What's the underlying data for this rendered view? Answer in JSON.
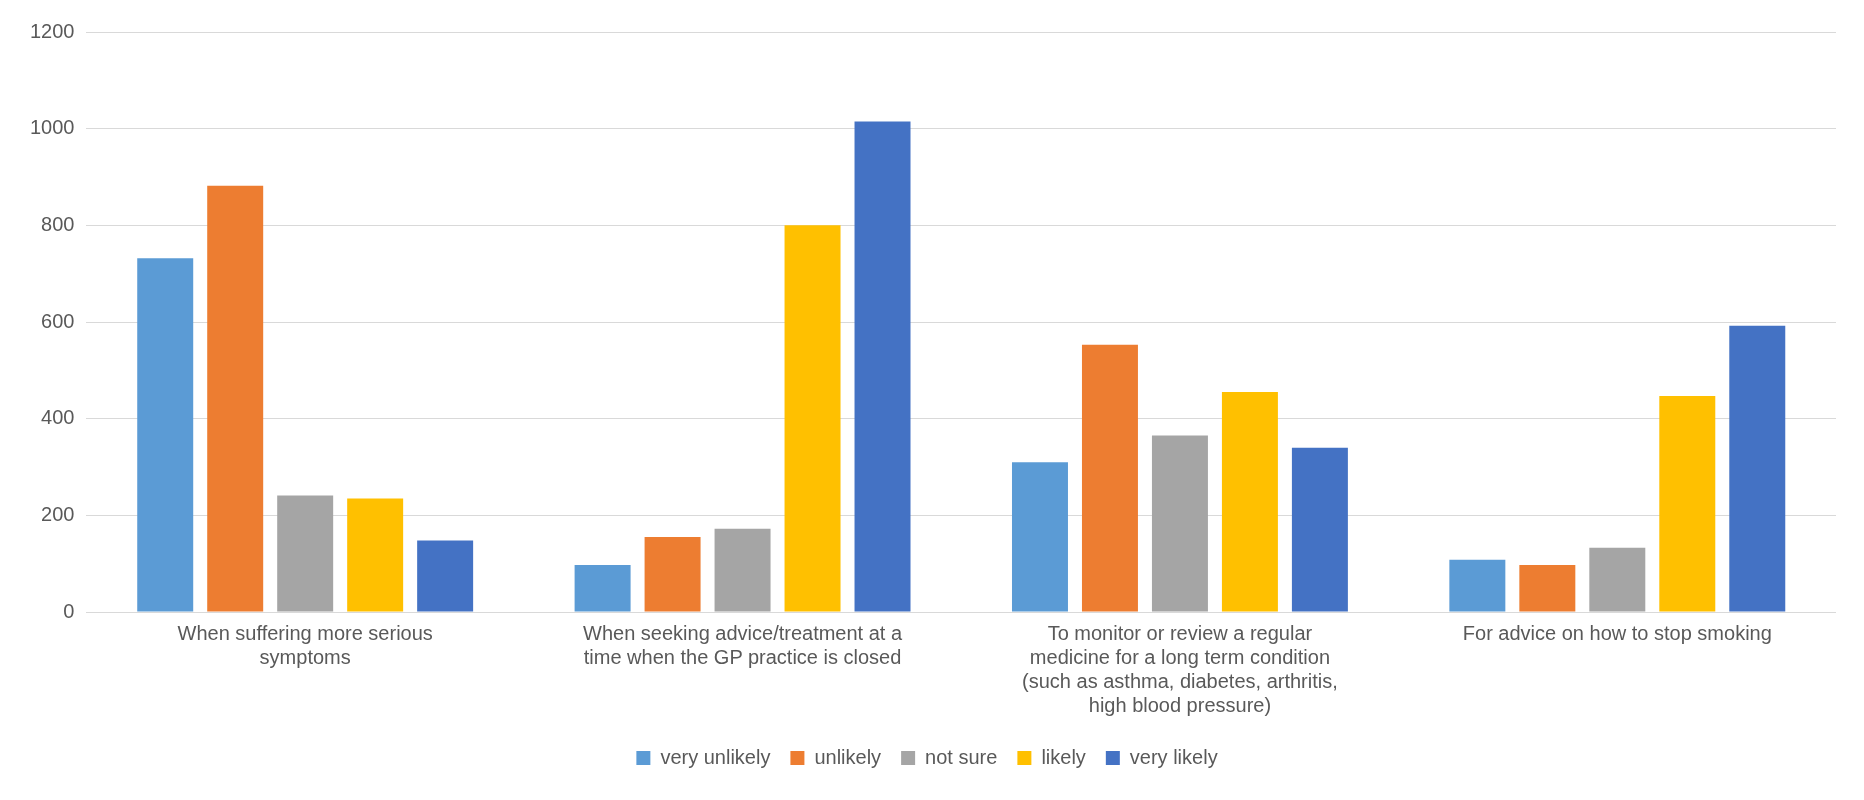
{
  "chart_data": {
    "type": "bar",
    "categories": [
      "When suffering more serious symptoms",
      "When seeking advice/treatment at a time when the GP practice is closed",
      "To monitor or review a regular medicine for a long term condition (such as asthma, diabetes, arthritis, high blood pressure)",
      "For advice on how to stop smoking"
    ],
    "series": [
      {
        "name": "very unlikely",
        "color": "#5b9bd5",
        "values": [
          732,
          97,
          310,
          108
        ]
      },
      {
        "name": "unlikely",
        "color": "#ed7d31",
        "values": [
          882,
          155,
          553,
          97
        ]
      },
      {
        "name": "not sure",
        "color": "#a5a5a5",
        "values": [
          241,
          172,
          365,
          133
        ]
      },
      {
        "name": "likely",
        "color": "#ffc000",
        "values": [
          235,
          800,
          455,
          447
        ]
      },
      {
        "name": "very likely",
        "color": "#4472c4",
        "values": [
          148,
          1015,
          340,
          592
        ]
      }
    ],
    "ylim": [
      0,
      1200
    ],
    "yticks": [
      0,
      200,
      400,
      600,
      800,
      1000,
      1200
    ],
    "grid": "y",
    "legend": "bottom"
  }
}
